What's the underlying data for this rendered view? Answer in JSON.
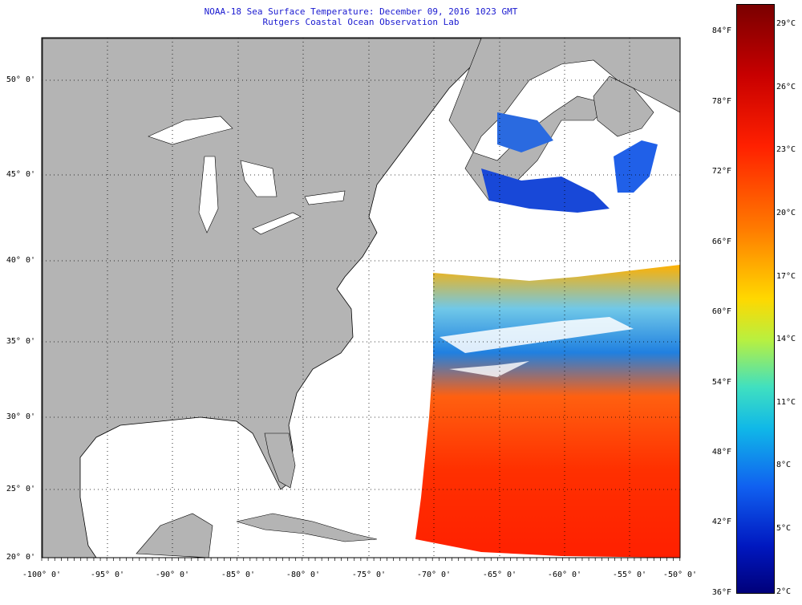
{
  "title": {
    "line1": "NOAA-18 Sea Surface Temperature:  December 09, 2016 1023 GMT",
    "line2": "Rutgers Coastal Ocean Observation Lab"
  },
  "map": {
    "lon_range": [
      -100,
      -50
    ],
    "lat_range": [
      20,
      52
    ],
    "lat_labels": [
      "50° 0'",
      "45° 0'",
      "40° 0'",
      "35° 0'",
      "30° 0'",
      "25° 0'",
      "20° 0'"
    ],
    "lon_labels": [
      "-100° 0'",
      "-95° 0'",
      "-90° 0'",
      "-85° 0'",
      "-80° 0'",
      "-75° 0'",
      "-70° 0'",
      "-65° 0'",
      "-60° 0'",
      "-55° 0'",
      "-50° 0'"
    ],
    "colors": {
      "land": "#b4b4b4",
      "ocean": "#ffffff",
      "grid": "#000000"
    }
  },
  "colorbar": {
    "fahrenheit": [
      "84°F",
      "78°F",
      "72°F",
      "66°F",
      "60°F",
      "54°F",
      "48°F",
      "42°F",
      "36°F"
    ],
    "celsius": [
      "29°C",
      "26°C",
      "23°C",
      "20°C",
      "17°C",
      "14°C",
      "11°C",
      "8°C",
      "5°C",
      "2°C"
    ]
  }
}
